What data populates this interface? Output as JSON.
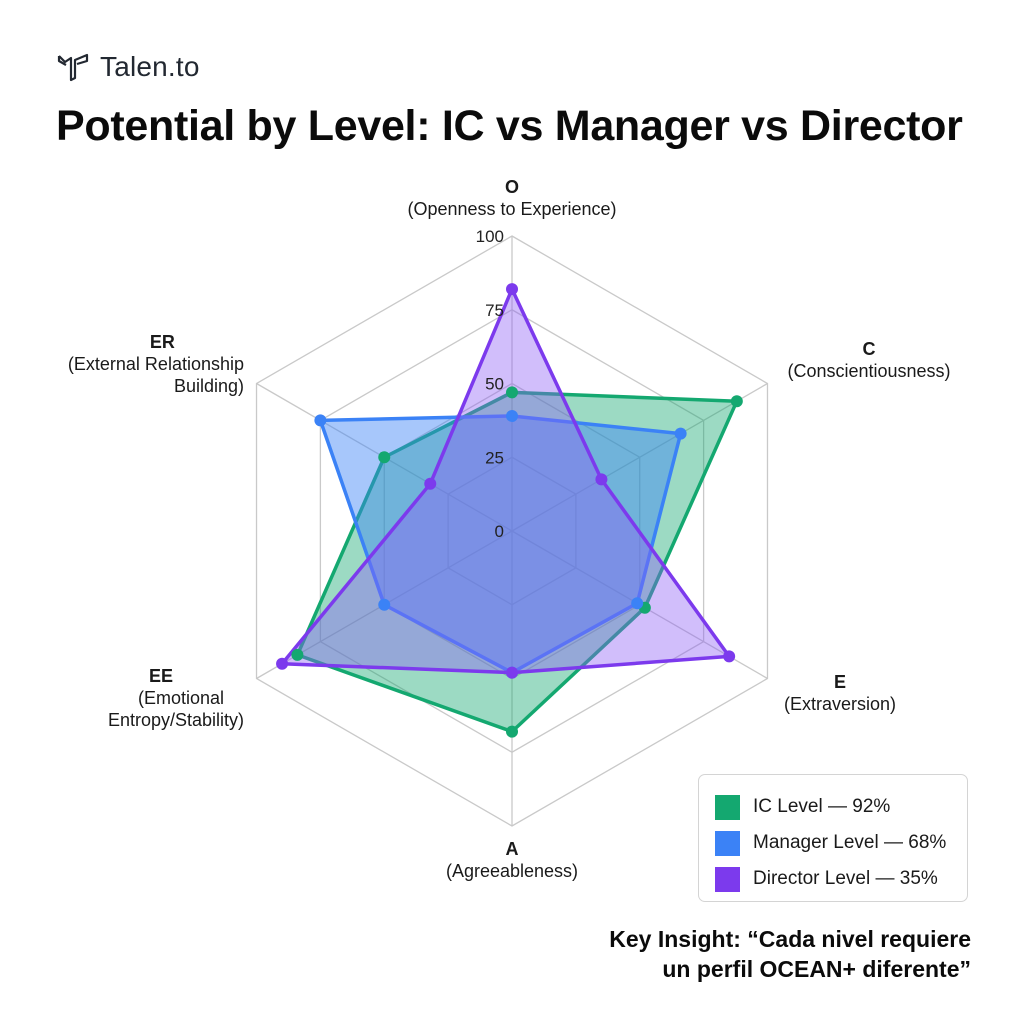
{
  "brand": {
    "name": "Talen.to",
    "logo_icon": "talento-logo-icon"
  },
  "title": "Potential by Level: IC vs Manager vs Director",
  "axes": [
    {
      "code": "O",
      "label": "(Openness to Experience)"
    },
    {
      "code": "C",
      "label": "(Conscientiousness)"
    },
    {
      "code": "E",
      "label": "(Extraversion)"
    },
    {
      "code": "A",
      "label": "(Agreeableness)"
    },
    {
      "code": "EE",
      "label_line1": "(Emotional",
      "label_line2": "Entropy/Stability)"
    },
    {
      "code": "ER",
      "label_line1": "(External Relationship",
      "label_line2": "Building)"
    }
  ],
  "legend": [
    {
      "label": "IC Level — 92%",
      "color": "#14a870"
    },
    {
      "label": "Manager Level — 68%",
      "color": "#3b82f6"
    },
    {
      "label": "Director Level — 35%",
      "color": "#7c3aed"
    }
  ],
  "insight": {
    "line1": "Key Insight: “Cada nivel requiere",
    "line2": "un perfil OCEAN+ diferente”"
  },
  "chart_data": {
    "type": "radar",
    "title": "Potential by Level: IC vs Manager vs Director",
    "categories": [
      "O",
      "C",
      "E",
      "A",
      "EE",
      "ER"
    ],
    "category_labels": [
      "Openness to Experience",
      "Conscientiousness",
      "Extraversion",
      "Agreeableness",
      "Emotional Entropy/Stability",
      "External Relationship Building"
    ],
    "ticks": [
      0,
      25,
      50,
      75,
      100
    ],
    "range": [
      0,
      100
    ],
    "series": [
      {
        "name": "IC Level — 92%",
        "color": "#14a870",
        "values": [
          47,
          88,
          52,
          68,
          84,
          50
        ]
      },
      {
        "name": "Manager Level — 68%",
        "color": "#3b82f6",
        "values": [
          39,
          66,
          49,
          48,
          50,
          75
        ]
      },
      {
        "name": "Director Level — 35%",
        "color": "#7c3aed",
        "values": [
          82,
          35,
          85,
          48,
          90,
          32
        ]
      }
    ],
    "legend_position": "bottom-right",
    "grid": true
  }
}
